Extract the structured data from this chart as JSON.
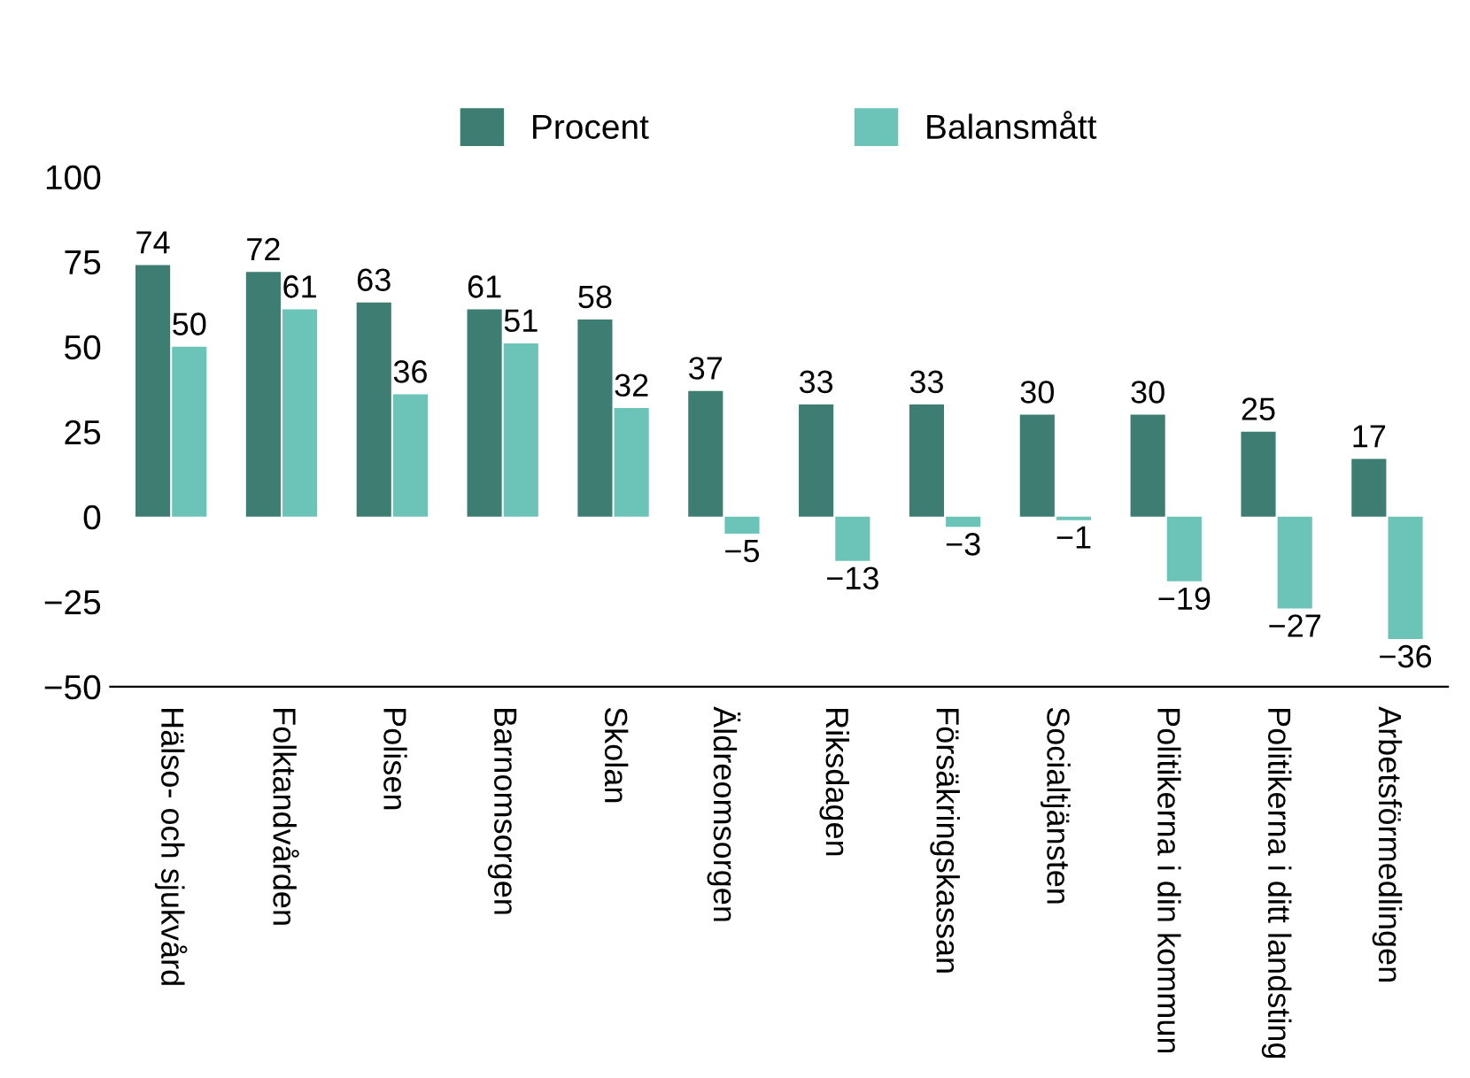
{
  "chart_data": {
    "type": "bar",
    "categories": [
      "Hälso- och sjukvård",
      "Folktandvården",
      "Polisen",
      "Barnomsorgen",
      "Skolan",
      "Äldreomsorgen",
      "Riksdagen",
      "Försäkringskassan",
      "Socialtjänsten",
      "Politikerna i din kommun",
      "Politikerna i ditt landsting",
      "Arbetsförmedlingen"
    ],
    "series": [
      {
        "name": "Procent",
        "color": "#3d7d72",
        "values": [
          74,
          72,
          63,
          61,
          58,
          37,
          33,
          33,
          30,
          30,
          25,
          17
        ]
      },
      {
        "name": "Balansmått",
        "color": "#6cc4b8",
        "values": [
          50,
          61,
          36,
          51,
          32,
          -5,
          -13,
          -3,
          -1,
          -19,
          -27,
          -36
        ]
      }
    ],
    "ylim": [
      -50,
      100
    ],
    "yticks": [
      {
        "value": -50,
        "label": "−50"
      },
      {
        "value": -25,
        "label": "−25"
      },
      0,
      25,
      50,
      75,
      100
    ],
    "data_labels": true,
    "legend": "top",
    "grid": false
  }
}
